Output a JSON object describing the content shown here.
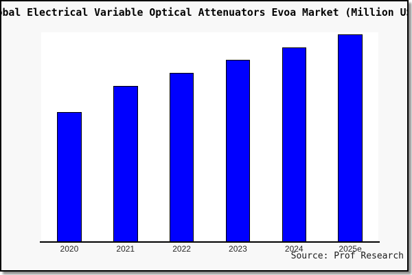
{
  "title": "Global Electrical Variable Optical Attenuators Evoa Market (Million US$)",
  "source": "Source: Prof Research",
  "colors": {
    "bar_fill": "#0000ff",
    "bar_edge": "#000000",
    "figure_background": "#f8f8f8",
    "plot_background": "#ffffff",
    "frame_border": "#000000",
    "shadow": "#8f8f8f"
  },
  "chart_data": {
    "type": "bar",
    "title": "Global Electrical Variable Optical Attenuators Evoa Market (Million US$)",
    "categories": [
      "2020",
      "2021",
      "2022",
      "2023",
      "2024",
      "2025e"
    ],
    "values": [
      62.7,
      75.3,
      81.6,
      87.8,
      93.7,
      100
    ],
    "values_note": "relative units estimated from bar heights; y-axis has no tick labels in the image",
    "xlabel": "",
    "ylabel": "",
    "ylim": [
      0,
      101
    ],
    "grid": false,
    "legend": false,
    "bar_color": "#0000ff",
    "bar_edge_color": "#000000",
    "source": "Source: Prof Research"
  }
}
